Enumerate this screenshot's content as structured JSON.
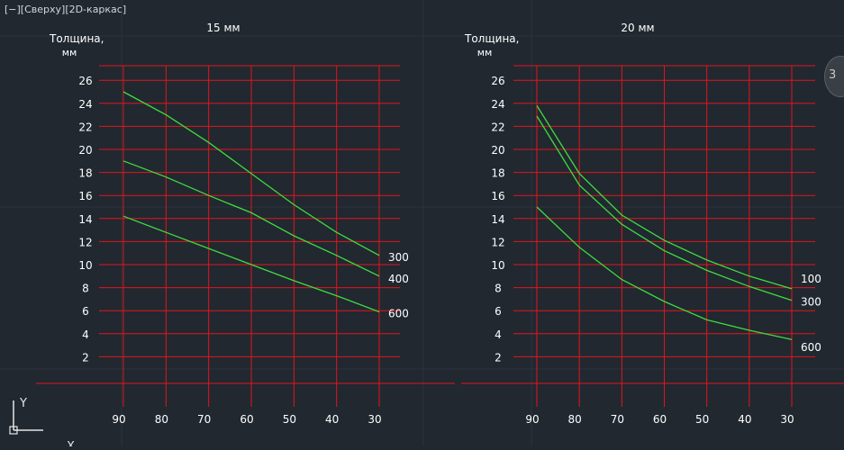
{
  "viewport": {
    "label": "[−][Сверху][2D-каркас]",
    "nav_cube_text": "3"
  },
  "ucs": {
    "y_label": "Y",
    "x_label": "X"
  },
  "colors": {
    "background": "#212830",
    "grid": "#e3151c",
    "curve": "#3fdc3f",
    "text": "#ffffff",
    "faint_grid": "#2b323b"
  },
  "chart_data": [
    {
      "type": "line",
      "title": "15 мм",
      "ylabel": "Толщина,",
      "yunit": "мм",
      "x_ticks": [
        90,
        80,
        70,
        60,
        50,
        40,
        30
      ],
      "y_ticks": [
        2,
        4,
        6,
        8,
        10,
        12,
        14,
        16,
        18,
        20,
        22,
        24,
        26
      ],
      "xlim": [
        90,
        30
      ],
      "ylim": [
        0,
        26
      ],
      "grid": true,
      "series": [
        {
          "name": "300",
          "x": [
            90,
            80,
            70,
            60,
            50,
            40,
            30
          ],
          "y": [
            25,
            23,
            20.6,
            17.9,
            15.2,
            12.8,
            10.8
          ]
        },
        {
          "name": "400",
          "x": [
            90,
            80,
            70,
            60,
            50,
            40,
            30
          ],
          "y": [
            19,
            17.6,
            16,
            14.5,
            12.5,
            10.8,
            9
          ]
        },
        {
          "name": "600",
          "x": [
            90,
            80,
            70,
            60,
            50,
            40,
            30
          ],
          "y": [
            14.2,
            12.8,
            11.4,
            10,
            8.6,
            7.3,
            5.9
          ]
        }
      ]
    },
    {
      "type": "line",
      "title": "20 мм",
      "ylabel": "Толщина,",
      "yunit": "мм",
      "x_ticks": [
        90,
        80,
        70,
        60,
        50,
        40,
        30
      ],
      "y_ticks": [
        2,
        4,
        6,
        8,
        10,
        12,
        14,
        16,
        18,
        20,
        22,
        24,
        26
      ],
      "xlim": [
        90,
        30
      ],
      "ylim": [
        0,
        26
      ],
      "grid": true,
      "series": [
        {
          "name": "100",
          "x": [
            90,
            80,
            70,
            60,
            50,
            40,
            30
          ],
          "y": [
            23.8,
            17.9,
            14.3,
            12.1,
            10.4,
            9,
            7.9
          ]
        },
        {
          "name": "300",
          "x": [
            90,
            80,
            70,
            60,
            50,
            40,
            30
          ],
          "y": [
            22.9,
            16.9,
            13.5,
            11.2,
            9.5,
            8.1,
            6.9
          ]
        },
        {
          "name": "600",
          "x": [
            90,
            80,
            70,
            60,
            50,
            40,
            30
          ],
          "y": [
            15,
            11.5,
            8.7,
            6.8,
            5.2,
            4.3,
            3.5
          ]
        }
      ]
    }
  ]
}
